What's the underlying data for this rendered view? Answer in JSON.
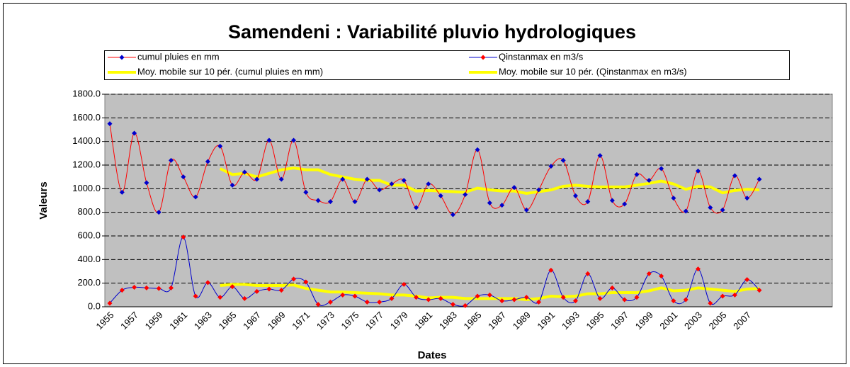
{
  "chart_data": {
    "type": "line",
    "title": "Samendeni : Variabilité pluvio hydrologiques",
    "x_label": "Dates",
    "y_label": "Valeurs",
    "categories": [
      "1955",
      null,
      "1957",
      null,
      "1959",
      null,
      "1961",
      null,
      "1963",
      null,
      "1965",
      null,
      "1967",
      null,
      "1969",
      null,
      "1971",
      null,
      "1973",
      null,
      "1975",
      null,
      "1977",
      null,
      "1979",
      null,
      "1981",
      null,
      "1983",
      null,
      "1985",
      null,
      "1987",
      null,
      "1989",
      null,
      "1991",
      null,
      "1993",
      null,
      "1995",
      null,
      "1997",
      null,
      "1999",
      null,
      "2001",
      null,
      "2003",
      null,
      "2005",
      null,
      "2007",
      null
    ],
    "ylim": [
      0,
      1800
    ],
    "yticks": [
      {
        "value": 0,
        "label": "0.0"
      },
      {
        "value": 200,
        "label": "200.0"
      },
      {
        "value": 400,
        "label": "400.0"
      },
      {
        "value": 600,
        "label": "600.0"
      },
      {
        "value": 800,
        "label": "800.0"
      },
      {
        "value": 1000,
        "label": "1000.0"
      },
      {
        "value": 1200,
        "label": "1200.0"
      },
      {
        "value": 1400,
        "label": "1400.0"
      },
      {
        "value": 1600,
        "label": "1600.0"
      },
      {
        "value": 1800,
        "label": "1800.0"
      }
    ],
    "grid": true,
    "plot_background": "#c0c0c0",
    "series": [
      {
        "name": "cumul pluies en mm",
        "color": "#ff0000",
        "marker_color": "#0000cc",
        "smooth": true,
        "values": [
          1550,
          970,
          1470,
          1050,
          800,
          1240,
          1100,
          930,
          1230,
          1360,
          1030,
          1140,
          1080,
          1410,
          1080,
          1410,
          970,
          900,
          890,
          1080,
          890,
          1080,
          990,
          1040,
          1070,
          840,
          1040,
          940,
          780,
          950,
          1330,
          880,
          860,
          1010,
          820,
          990,
          1190,
          1240,
          940,
          890,
          1280,
          900,
          870,
          1120,
          1070,
          1170,
          920,
          810,
          1150,
          840,
          820,
          1110,
          920,
          1080
        ]
      },
      {
        "name": "Qinstanmax en m3/s",
        "color": "#0000cc",
        "marker_color": "#ff0000",
        "smooth": true,
        "values": [
          30,
          140,
          165,
          160,
          155,
          160,
          590,
          90,
          205,
          80,
          170,
          70,
          130,
          150,
          140,
          235,
          210,
          20,
          40,
          100,
          90,
          40,
          40,
          70,
          190,
          80,
          60,
          70,
          20,
          10,
          90,
          100,
          50,
          60,
          80,
          40,
          310,
          80,
          50,
          280,
          70,
          160,
          60,
          80,
          280,
          260,
          50,
          60,
          320,
          30,
          90,
          100,
          230,
          140
        ]
      },
      {
        "name": "Moy. mobile sur 10 pér. (cumul pluies en mm)",
        "color": "#ffff00",
        "smooth": false,
        "values": [
          null,
          null,
          null,
          null,
          null,
          null,
          null,
          null,
          null,
          1170,
          1120,
          1130,
          1100,
          1130,
          1160,
          1175,
          1160,
          1160,
          1120,
          1100,
          1080,
          1070,
          1070,
          1030,
          1030,
          980,
          985,
          980,
          975,
          970,
          1005,
          990,
          980,
          980,
          960,
          975,
          990,
          1020,
          1030,
          1020,
          1015,
          1015,
          1015,
          1030,
          1045,
          1065,
          1040,
          995,
          1020,
          1015,
          965,
          985,
          995,
          990
        ]
      },
      {
        "name": "Moy. mobile sur 10 pér. (Qinstanmax en m3/s)",
        "color": "#ffff00",
        "smooth": false,
        "values": [
          null,
          null,
          null,
          null,
          null,
          null,
          null,
          null,
          null,
          180,
          190,
          190,
          180,
          180,
          180,
          185,
          155,
          140,
          125,
          125,
          120,
          115,
          110,
          100,
          100,
          90,
          75,
          80,
          80,
          70,
          70,
          70,
          70,
          70,
          60,
          70,
          90,
          85,
          90,
          110,
          110,
          120,
          120,
          120,
          135,
          160,
          135,
          140,
          160,
          150,
          140,
          130,
          150,
          155
        ]
      }
    ]
  }
}
